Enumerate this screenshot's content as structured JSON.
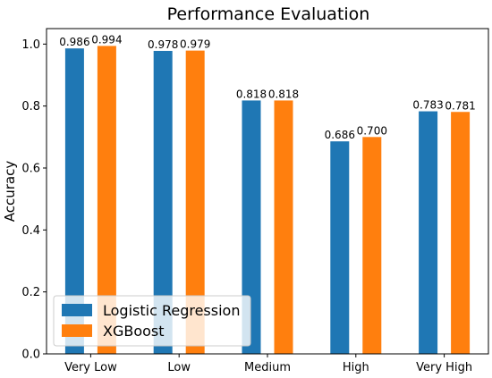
{
  "chart_data": {
    "type": "bar",
    "title": "Performance Evaluation",
    "xlabel": "",
    "ylabel": "Accuracy",
    "ylim": [
      0.0,
      1.05
    ],
    "yticks": [
      "0.0",
      "0.2",
      "0.4",
      "0.6",
      "0.8",
      "1.0"
    ],
    "categories": [
      "Very Low",
      "Low",
      "Medium",
      "High",
      "Very High"
    ],
    "series": [
      {
        "name": "Logistic Regression",
        "color": "#1f77b4",
        "values": [
          0.986,
          0.978,
          0.818,
          0.686,
          0.783
        ],
        "labels": [
          "0.986",
          "0.978",
          "0.818",
          "0.686",
          "0.783"
        ]
      },
      {
        "name": "XGBoost",
        "color": "#ff7f0e",
        "values": [
          0.994,
          0.979,
          0.818,
          0.7,
          0.781
        ],
        "labels": [
          "0.994",
          "0.979",
          "0.818",
          "0.700",
          "0.781"
        ]
      }
    ],
    "legend_position": "lower-left",
    "grid": false
  }
}
